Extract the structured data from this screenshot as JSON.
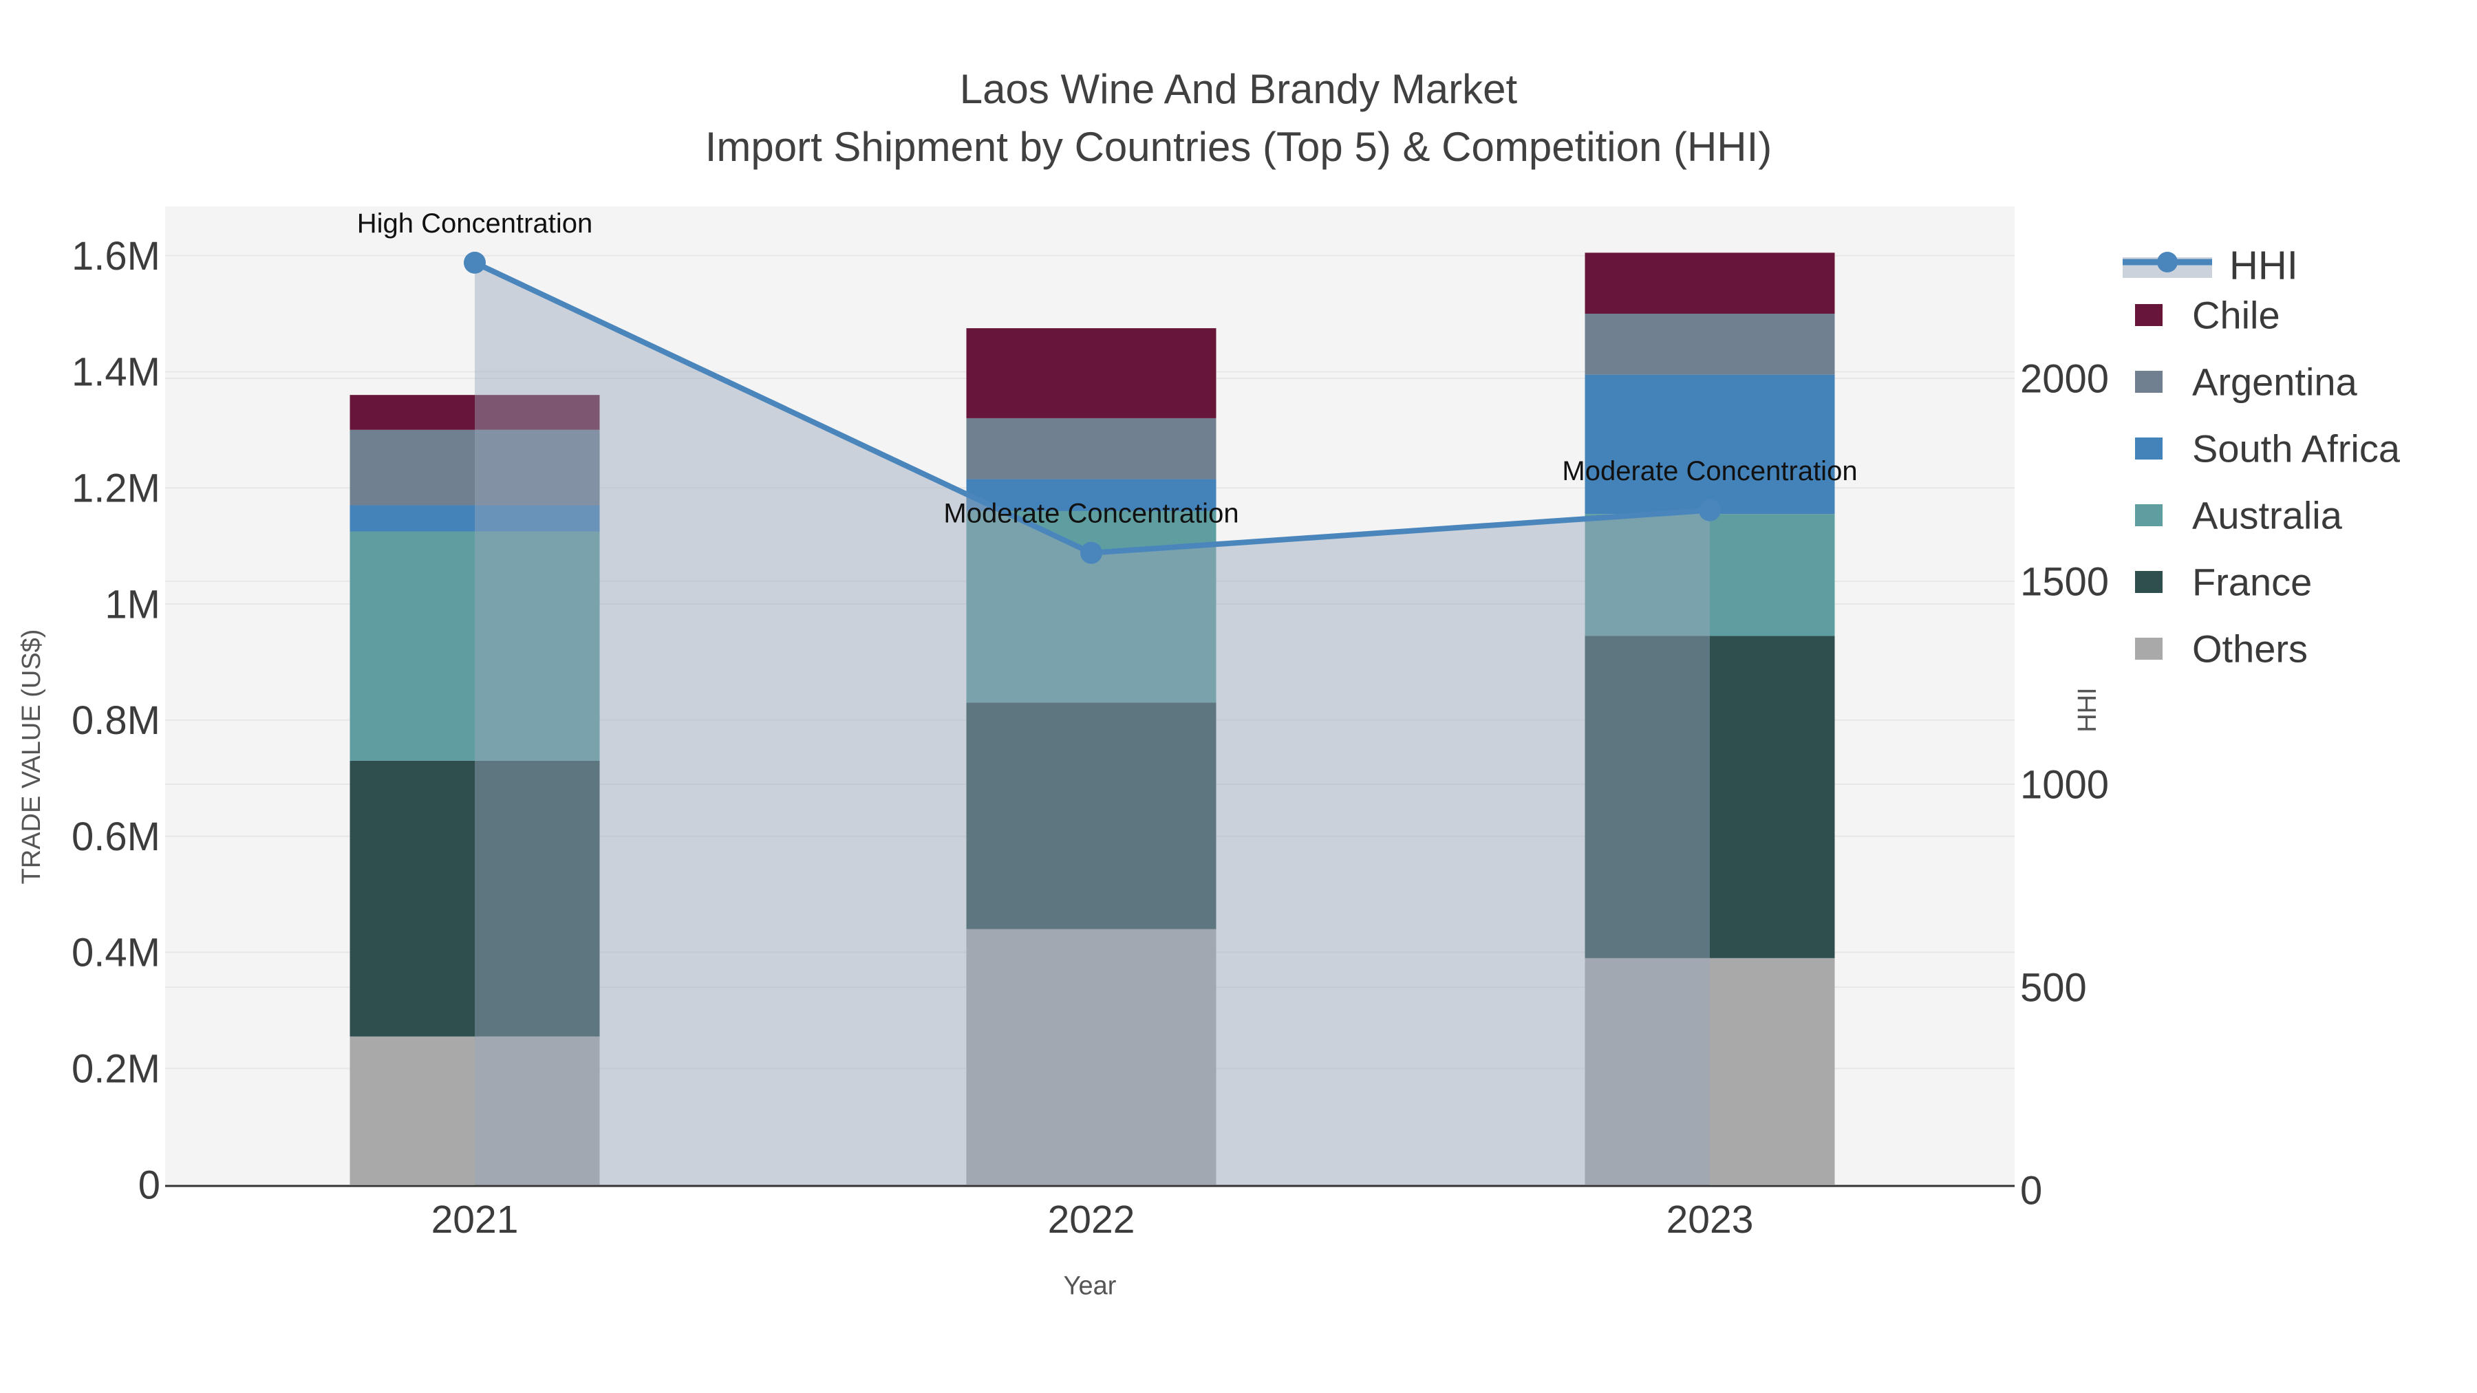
{
  "chart_data": {
    "type": "bar+line",
    "title": "Laos Wine And Brandy Market",
    "subtitle": "Import Shipment by Countries (Top 5) & Competition (HHI)",
    "xlabel": "Year",
    "ylabel_left": "TRADE VALUE (US$)",
    "ylabel_right": "HHI",
    "categories": [
      "2021",
      "2022",
      "2023"
    ],
    "stack_order_bottom_to_top": [
      "Others",
      "France",
      "Australia",
      "South Africa",
      "Argentina",
      "Chile"
    ],
    "bar_series": [
      {
        "name": "Others",
        "color": "#A9A9A9",
        "values": [
          255000,
          440000,
          390000
        ]
      },
      {
        "name": "France",
        "color": "#2F4F4F",
        "values": [
          475000,
          390000,
          555000
        ]
      },
      {
        "name": "Australia",
        "color": "#5F9EA0",
        "values": [
          395000,
          330000,
          210000
        ]
      },
      {
        "name": "South Africa",
        "color": "#4483B9",
        "values": [
          45000,
          55000,
          240000
        ]
      },
      {
        "name": "Argentina",
        "color": "#708090",
        "values": [
          130000,
          105000,
          105000
        ]
      },
      {
        "name": "Chile",
        "color": "#671538",
        "values": [
          60000,
          155000,
          105000
        ]
      }
    ],
    "bar_totals": [
      1360000,
      1475000,
      1605000
    ],
    "line_series": {
      "name": "HHI",
      "color": "#4A86BC",
      "area_color": "rgba(154,166,187,0.45)",
      "values": [
        2285,
        1570,
        1675
      ]
    },
    "annotations": [
      {
        "category": "2021",
        "text": "High Concentration"
      },
      {
        "category": "2022",
        "text": "Moderate Concentration"
      },
      {
        "category": "2023",
        "text": "Moderate Concentration"
      }
    ],
    "axis_left": {
      "tick_values": [
        0,
        200000,
        400000,
        600000,
        800000,
        1000000,
        1200000,
        1400000,
        1600000
      ],
      "tick_labels": [
        "0",
        "0.2M",
        "0.4M",
        "0.6M",
        "0.8M",
        "1M",
        "1.2M",
        "1.4M",
        "1.6M"
      ]
    },
    "axis_right": {
      "tick_values": [
        0,
        500,
        1000,
        1500,
        2000
      ],
      "tick_labels": [
        "0",
        "500",
        "1000",
        "1500",
        "2000"
      ]
    },
    "legend_order": [
      "HHI",
      "Chile",
      "Argentina",
      "South Africa",
      "Australia",
      "France",
      "Others"
    ],
    "grid": true,
    "legend_position": "right"
  },
  "style_colors": {
    "plot_background": "#F4F4F4",
    "gridline": "#E7E7E7",
    "axis_line": "#333333",
    "tick_text": "#3C3C3C",
    "axis_title_text": "#555555",
    "annotation_text": "#111111",
    "legend_text": "#3A3A3A",
    "legend_area_band": "#CBD2DC"
  }
}
